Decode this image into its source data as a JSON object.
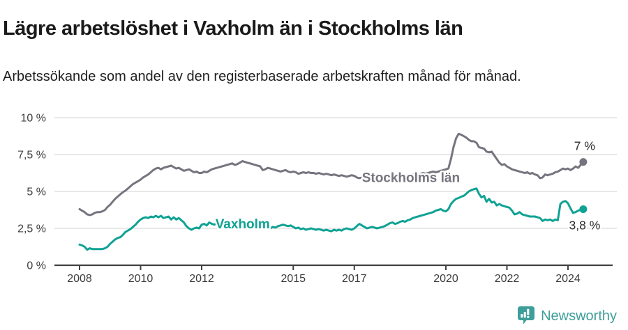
{
  "header": {
    "title": "Lägre arbetslöshet i Vaxholm än i Stockholms län",
    "subtitle": "Arbetssökande som andel av den registerbaserade arbetskraften månad för månad."
  },
  "chart_data": {
    "type": "line",
    "title": "Lägre arbetslöshet i Vaxholm än i Stockholms län",
    "subtitle": "Arbetssökande som andel av den registerbaserade arbetskraften månad för månad.",
    "xlabel": "",
    "ylabel": "",
    "grid": true,
    "x_start_year": 2008,
    "points_per_year": 12,
    "xlim": [
      2007.2,
      2025.5
    ],
    "ylim": [
      0,
      10
    ],
    "y_ticks": [
      {
        "value": 0,
        "label": "0 %"
      },
      {
        "value": 2.5,
        "label": "2,5 %"
      },
      {
        "value": 5,
        "label": "5 %"
      },
      {
        "value": 7.5,
        "label": "7,5 %"
      },
      {
        "value": 10,
        "label": "10 %"
      }
    ],
    "x_ticks": [
      {
        "value": 2008,
        "label": "2008"
      },
      {
        "value": 2010,
        "label": "2010"
      },
      {
        "value": 2012,
        "label": "2012"
      },
      {
        "value": 2015,
        "label": "2015"
      },
      {
        "value": 2017,
        "label": "2017"
      },
      {
        "value": 2020,
        "label": "2020"
      },
      {
        "value": 2022,
        "label": "2022"
      },
      {
        "value": 2024,
        "label": "2024"
      }
    ],
    "series": [
      {
        "name": "Stockholms län",
        "slug": "stockholms-lan",
        "color": "#76747e",
        "end_label": "7 %",
        "inline_label_pos": {
          "year": 2017.25,
          "value": 5.93
        },
        "values": [
          3.8,
          3.7,
          3.6,
          3.45,
          3.4,
          3.45,
          3.55,
          3.6,
          3.6,
          3.65,
          3.75,
          3.95,
          4.1,
          4.3,
          4.5,
          4.65,
          4.8,
          4.95,
          5.05,
          5.2,
          5.35,
          5.5,
          5.6,
          5.7,
          5.8,
          5.95,
          6.05,
          6.15,
          6.3,
          6.45,
          6.55,
          6.6,
          6.5,
          6.6,
          6.65,
          6.7,
          6.75,
          6.65,
          6.55,
          6.6,
          6.5,
          6.4,
          6.45,
          6.5,
          6.4,
          6.3,
          6.35,
          6.25,
          6.25,
          6.35,
          6.3,
          6.4,
          6.5,
          6.55,
          6.6,
          6.65,
          6.7,
          6.75,
          6.8,
          6.85,
          6.9,
          6.8,
          6.85,
          6.95,
          7.05,
          7.0,
          6.95,
          6.9,
          6.85,
          6.8,
          6.75,
          6.7,
          6.45,
          6.5,
          6.6,
          6.55,
          6.5,
          6.45,
          6.4,
          6.35,
          6.4,
          6.45,
          6.35,
          6.3,
          6.35,
          6.3,
          6.2,
          6.25,
          6.3,
          6.25,
          6.3,
          6.25,
          6.25,
          6.2,
          6.25,
          6.2,
          6.15,
          6.2,
          6.15,
          6.1,
          6.15,
          6.1,
          6.05,
          6.1,
          6.05,
          6.0,
          6.05,
          6.1,
          6.05,
          5.95,
          5.9,
          5.95,
          5.9,
          5.85,
          5.9,
          5.95,
          5.9,
          5.95,
          6.0,
          5.95,
          6.0,
          5.95,
          5.9,
          5.95,
          6.0,
          6.05,
          6.0,
          6.05,
          6.1,
          6.05,
          6.1,
          6.15,
          6.1,
          6.15,
          6.2,
          6.25,
          6.2,
          6.25,
          6.3,
          6.35,
          6.3,
          6.35,
          6.4,
          6.45,
          6.5,
          6.55,
          7.2,
          8.0,
          8.6,
          8.9,
          8.85,
          8.75,
          8.65,
          8.5,
          8.4,
          8.4,
          8.3,
          8.0,
          7.95,
          7.9,
          7.7,
          7.65,
          7.7,
          7.45,
          7.2,
          6.95,
          6.8,
          6.85,
          6.7,
          6.6,
          6.5,
          6.45,
          6.4,
          6.35,
          6.3,
          6.25,
          6.3,
          6.2,
          6.25,
          6.15,
          6.1,
          5.9,
          5.95,
          6.15,
          6.1,
          6.15,
          6.2,
          6.3,
          6.35,
          6.45,
          6.55,
          6.5,
          6.55,
          6.45,
          6.55,
          6.7,
          6.6,
          6.8,
          7.0
        ]
      },
      {
        "name": "Vaxholm",
        "slug": "vaxholm",
        "color": "#0fa294",
        "end_label": "3,8 %",
        "inline_label_pos": {
          "year": 2012.45,
          "value": 2.78
        },
        "values": [
          1.4,
          1.35,
          1.25,
          1.05,
          1.15,
          1.1,
          1.1,
          1.1,
          1.1,
          1.1,
          1.15,
          1.25,
          1.45,
          1.6,
          1.75,
          1.85,
          1.9,
          2.05,
          2.25,
          2.35,
          2.45,
          2.6,
          2.75,
          2.95,
          3.1,
          3.2,
          3.25,
          3.2,
          3.3,
          3.25,
          3.35,
          3.25,
          3.35,
          3.2,
          3.25,
          3.3,
          3.1,
          3.25,
          3.1,
          3.2,
          3.05,
          2.9,
          2.65,
          2.5,
          2.4,
          2.5,
          2.55,
          2.5,
          2.75,
          2.8,
          2.7,
          2.9,
          2.8,
          2.75,
          2.85,
          2.8,
          2.9,
          2.85,
          2.95,
          2.9,
          2.95,
          3.0,
          2.9,
          2.95,
          2.85,
          2.9,
          2.8,
          2.85,
          2.75,
          2.7,
          2.6,
          2.55,
          2.5,
          2.55,
          2.45,
          2.5,
          2.6,
          2.55,
          2.65,
          2.7,
          2.75,
          2.7,
          2.65,
          2.7,
          2.6,
          2.5,
          2.55,
          2.45,
          2.5,
          2.4,
          2.45,
          2.5,
          2.45,
          2.4,
          2.45,
          2.4,
          2.35,
          2.4,
          2.35,
          2.3,
          2.4,
          2.35,
          2.4,
          2.35,
          2.45,
          2.5,
          2.45,
          2.4,
          2.5,
          2.65,
          2.8,
          2.7,
          2.6,
          2.5,
          2.55,
          2.6,
          2.55,
          2.5,
          2.55,
          2.6,
          2.65,
          2.75,
          2.85,
          2.9,
          2.8,
          2.85,
          2.95,
          3.0,
          2.95,
          3.05,
          3.1,
          3.2,
          3.25,
          3.3,
          3.35,
          3.4,
          3.45,
          3.5,
          3.55,
          3.6,
          3.7,
          3.75,
          3.8,
          3.7,
          3.65,
          3.8,
          4.15,
          4.35,
          4.5,
          4.55,
          4.65,
          4.7,
          4.85,
          5.0,
          5.1,
          5.15,
          5.2,
          4.85,
          4.6,
          4.7,
          4.3,
          4.5,
          4.25,
          4.3,
          4.05,
          4.15,
          4.05,
          4.0,
          3.95,
          3.9,
          3.7,
          3.45,
          3.5,
          3.6,
          3.45,
          3.4,
          3.35,
          3.3,
          3.3,
          3.3,
          3.25,
          3.2,
          3.0,
          3.1,
          3.05,
          3.1,
          3.0,
          3.1,
          3.05,
          4.15,
          4.3,
          4.35,
          4.2,
          3.85,
          3.55,
          3.6,
          3.7,
          3.75,
          3.8
        ]
      }
    ],
    "legend_position": "inline-labels",
    "colors": {
      "gridline": "#dadada",
      "axis": "#404040",
      "tick_label": "#3c3c3c",
      "annotation": "#2b2b2b"
    }
  },
  "footer": {
    "brand": "Newsworthy",
    "brand_color": "#3e9e99",
    "logo_icon": "bar-chart-speech-bubble-icon"
  }
}
